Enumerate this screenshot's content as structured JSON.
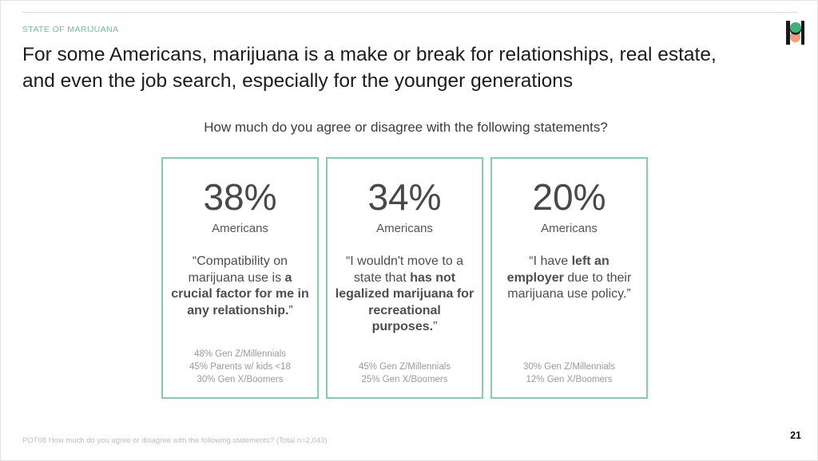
{
  "slide": {
    "eyebrow": "STATE OF MARIJUANA",
    "title": "For some Americans, marijuana is a make or break for relationships, real estate, and even the job search, especially for the younger generations",
    "question": "How much do you agree or disagree with the following statements?",
    "footer": "POT08 How much do you agree or disagree with the following statements? (Total n=2,043)",
    "page_number": "21"
  },
  "colors": {
    "accent_green": "#6fc295",
    "card_border": "#87cda8",
    "title_text": "#1c1c1f",
    "body_text": "#4d4d53",
    "stat_text": "#47474d",
    "muted_text": "#9a9aa0",
    "footer_text": "#bcbcc2",
    "logo_green": "#3db17c",
    "logo_orange": "#ef9d77",
    "logo_black": "#17171c"
  },
  "cards": [
    {
      "stat": "38%",
      "stat_label": "Americans",
      "quote_prefix": "“Compatibility on marijuana use is ",
      "quote_bold": "a crucial factor for me in any relationship.",
      "quote_suffix": "”",
      "breakdowns": [
        "48% Gen Z/Millennials",
        "45% Parents w/ kids <18",
        "30% Gen X/Boomers"
      ]
    },
    {
      "stat": "34%",
      "stat_label": "Americans",
      "quote_prefix": "“I wouldn't move to a state that ",
      "quote_bold": "has not legalized marijuana for recreational purposes.",
      "quote_suffix": "”",
      "breakdowns": [
        "45% Gen Z/Millennials",
        "25% Gen X/Boomers"
      ]
    },
    {
      "stat": "20%",
      "stat_label": "Americans",
      "quote_prefix": "“I have ",
      "quote_bold": "left an employer",
      "quote_suffix": " due to their marijuana use policy.”",
      "breakdowns": [
        "30% Gen Z/Millennials",
        "12% Gen X/Boomers"
      ]
    }
  ]
}
